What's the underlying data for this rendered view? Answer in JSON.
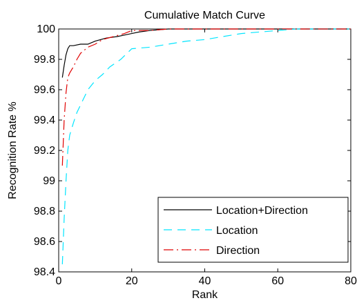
{
  "chart_data": {
    "type": "line",
    "title": "Cumulative Match Curve",
    "xlabel": "Rank",
    "ylabel": "Recognition Rate %",
    "xlim": [
      0,
      80
    ],
    "ylim": [
      98.4,
      100
    ],
    "xticks": [
      0,
      20,
      40,
      60,
      80
    ],
    "yticks": [
      98.4,
      98.6,
      98.8,
      99,
      99.2,
      99.4,
      99.6,
      99.8,
      100
    ],
    "xtick_labels": [
      "0",
      "20",
      "40",
      "60",
      "80"
    ],
    "ytick_labels": [
      "98.4",
      "98.6",
      "98.8",
      "99",
      "99.2",
      "99.4",
      "99.6",
      "99.8",
      "100"
    ],
    "grid": false,
    "legend_position": "bottom-right",
    "series": [
      {
        "name": "Location+Direction",
        "color": "#000000",
        "style": "solid",
        "x": [
          1,
          1.5,
          2,
          2.5,
          3,
          4,
          6,
          8,
          10,
          13,
          16,
          18,
          20,
          22,
          25,
          30,
          40,
          50,
          60,
          70,
          80
        ],
        "y": [
          99.68,
          99.76,
          99.83,
          99.87,
          99.89,
          99.89,
          99.9,
          99.9,
          99.92,
          99.94,
          99.95,
          99.96,
          99.97,
          99.98,
          99.99,
          100,
          100,
          100,
          100,
          100,
          100
        ]
      },
      {
        "name": "Location",
        "color": "#00e5ff",
        "style": "dashed",
        "x": [
          1,
          1.5,
          2,
          2.5,
          3,
          4,
          5,
          6,
          7,
          8,
          9,
          10,
          12,
          14,
          17,
          20,
          25,
          30,
          35,
          40,
          45,
          50,
          55,
          60,
          65,
          70,
          80
        ],
        "y": [
          98.45,
          98.75,
          99.0,
          99.2,
          99.3,
          99.38,
          99.45,
          99.5,
          99.55,
          99.6,
          99.63,
          99.66,
          99.7,
          99.75,
          99.8,
          99.87,
          99.88,
          99.9,
          99.92,
          99.93,
          99.95,
          99.97,
          99.98,
          99.99,
          100,
          100,
          100
        ]
      },
      {
        "name": "Direction",
        "color": "#e00000",
        "style": "dashdot",
        "x": [
          1,
          1.5,
          2,
          2.5,
          3,
          4,
          5,
          6,
          7,
          8,
          10,
          12,
          15,
          18,
          20,
          25,
          30,
          40,
          50,
          60,
          70,
          80
        ],
        "y": [
          99.1,
          99.4,
          99.58,
          99.68,
          99.71,
          99.75,
          99.8,
          99.84,
          99.86,
          99.88,
          99.9,
          99.93,
          99.95,
          99.97,
          99.99,
          99.99,
          100,
          100,
          100,
          100,
          100,
          100
        ]
      }
    ]
  }
}
